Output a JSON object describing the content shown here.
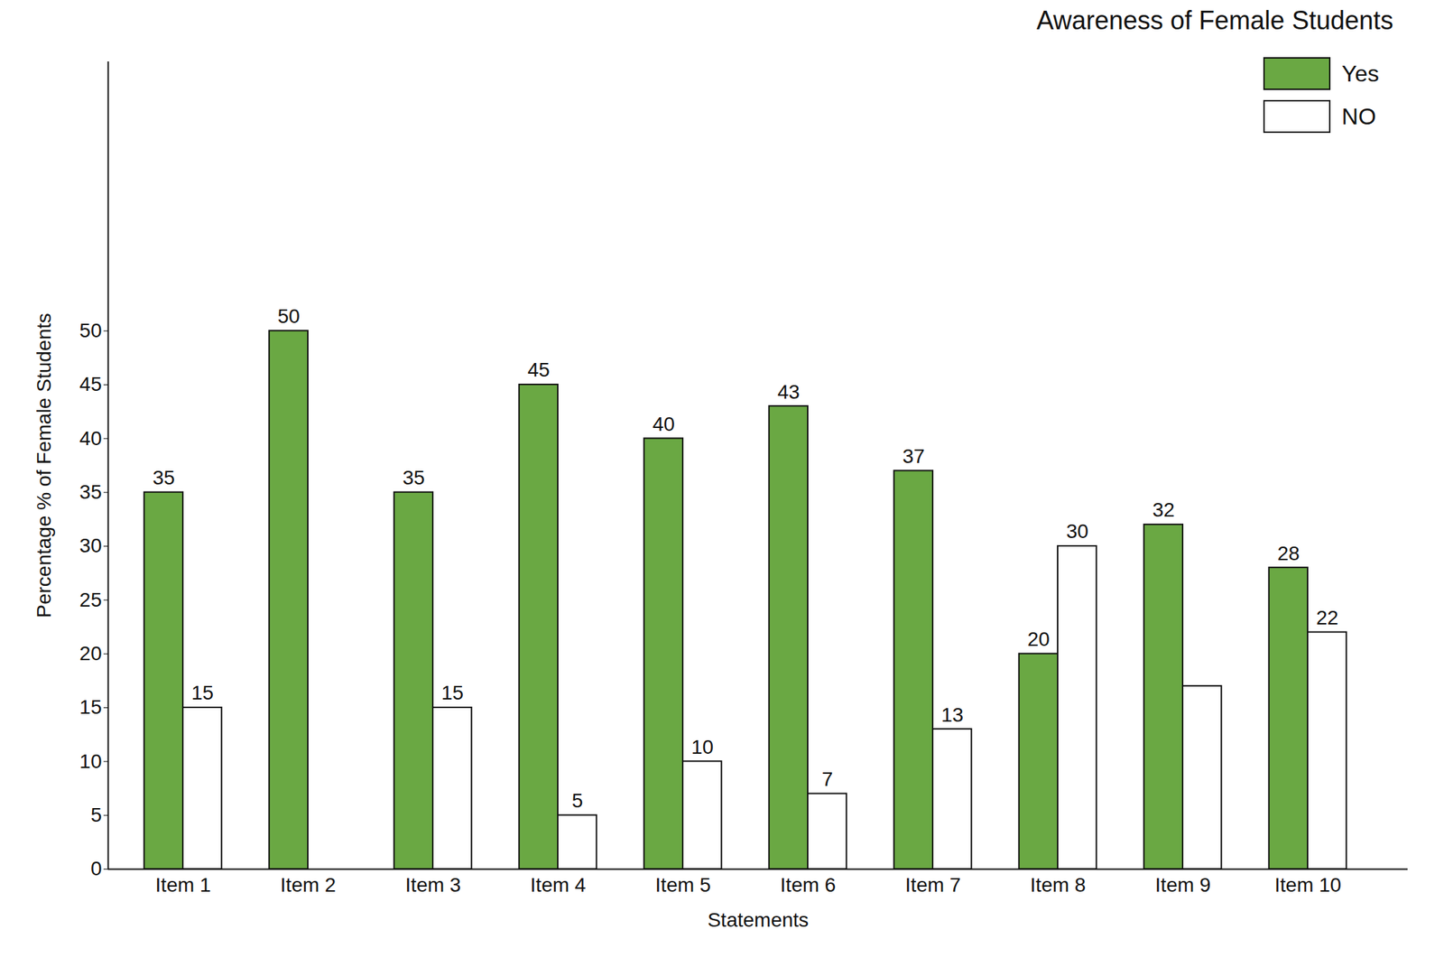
{
  "chart_data": {
    "type": "bar",
    "title": "Awareness of Female Students",
    "x_label": "Statements",
    "y_label": "Percentage % of Female Students",
    "categories": [
      "Item 1",
      "Item 2",
      "Item 3",
      "Item 4",
      "Item 5",
      "Item 6",
      "Item 7",
      "Item 8",
      "Item 9",
      "Item 10"
    ],
    "series": [
      {
        "name": "Yes",
        "color": "#6aa843",
        "values": [
          35,
          50,
          35,
          45,
          40,
          43,
          37,
          20,
          32,
          28
        ]
      },
      {
        "name": "NO",
        "color": "#ffffff",
        "values": [
          15,
          0,
          15,
          5,
          10,
          7,
          13,
          30,
          17,
          22
        ],
        "value_labels": [
          "15",
          null,
          "15",
          "5",
          "10",
          "7",
          "13",
          "30",
          null,
          "22"
        ]
      }
    ],
    "ylim": [
      0,
      75
    ],
    "yticks": [
      0,
      5,
      10,
      15,
      20,
      25,
      30,
      35,
      40,
      45,
      50
    ],
    "grid": false,
    "legend": "top-right",
    "data_labels": true
  }
}
